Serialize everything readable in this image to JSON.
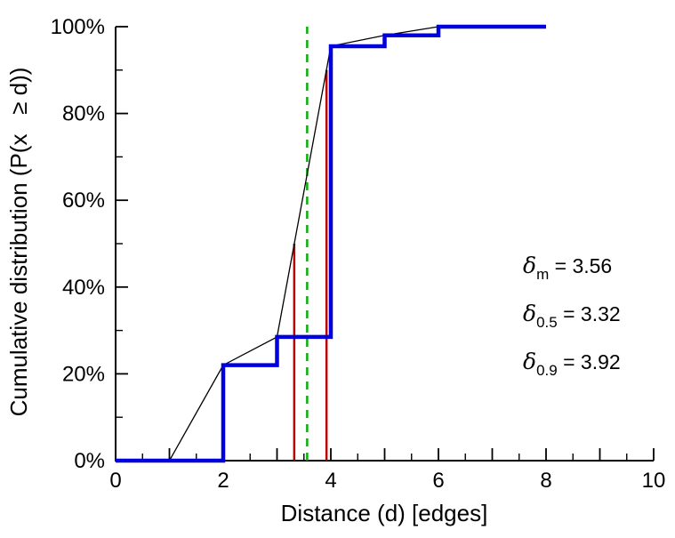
{
  "chart_data": {
    "type": "line",
    "title": "",
    "xlabel": "Distance (d) [edges]",
    "ylabel": "Cumulative distribution (P(x   ≥ d))",
    "xlim": [
      0,
      10
    ],
    "ylim": [
      0,
      100
    ],
    "grid": false,
    "x_ticks": [
      0,
      2,
      4,
      6,
      8,
      10
    ],
    "x_tick_labels": [
      "0",
      "2",
      "4",
      "6",
      "8",
      "10"
    ],
    "x_major_step": 1,
    "x_minor_step": 0.5,
    "y_ticks": [
      0,
      20,
      40,
      60,
      80,
      100
    ],
    "y_tick_labels": [
      "0%",
      "20%",
      "40%",
      "60%",
      "80%",
      "100%"
    ],
    "y_minor_step": 10,
    "series": [
      {
        "name": "interpolated-cdf",
        "color": "#000000",
        "width": 1.3,
        "style": "solid",
        "points": [
          [
            1,
            0
          ],
          [
            2,
            22
          ],
          [
            3,
            28.5
          ],
          [
            4,
            95.5
          ],
          [
            5,
            98
          ],
          [
            6,
            100
          ]
        ]
      },
      {
        "name": "empirical-cdf-step",
        "color": "#0000dd",
        "width": 4.5,
        "style": "solid",
        "points": [
          [
            0,
            0
          ],
          [
            2,
            0
          ],
          [
            2,
            22
          ],
          [
            3,
            22
          ],
          [
            3,
            28.5
          ],
          [
            4,
            28.5
          ],
          [
            4,
            95.5
          ],
          [
            5,
            95.5
          ],
          [
            5,
            98
          ],
          [
            6,
            98
          ],
          [
            6,
            100
          ],
          [
            8,
            100
          ]
        ]
      }
    ],
    "vlines": [
      {
        "name": "median-line",
        "x": 3.32,
        "y0": 0,
        "y1": 50,
        "color": "#bb0000",
        "width": 2.5,
        "style": "solid"
      },
      {
        "name": "p90-line",
        "x": 3.92,
        "y0": 0,
        "y1": 90,
        "color": "#bb0000",
        "width": 2.5,
        "style": "solid"
      },
      {
        "name": "mean-line",
        "x": 3.56,
        "y0": 0,
        "y1": 100,
        "color": "#00b400",
        "width": 2.5,
        "style": "dashed"
      }
    ],
    "annotations": [
      {
        "base": "δ",
        "sub": "m",
        "text": " = 3.56"
      },
      {
        "base": "δ",
        "sub": "0.5",
        "text": "  = 3.32"
      },
      {
        "base": "δ",
        "sub": "0.9",
        "text": "  = 3.92"
      }
    ],
    "stats": {
      "delta_mean": 3.56,
      "delta_median": 3.32,
      "delta_p90": 3.92
    }
  }
}
